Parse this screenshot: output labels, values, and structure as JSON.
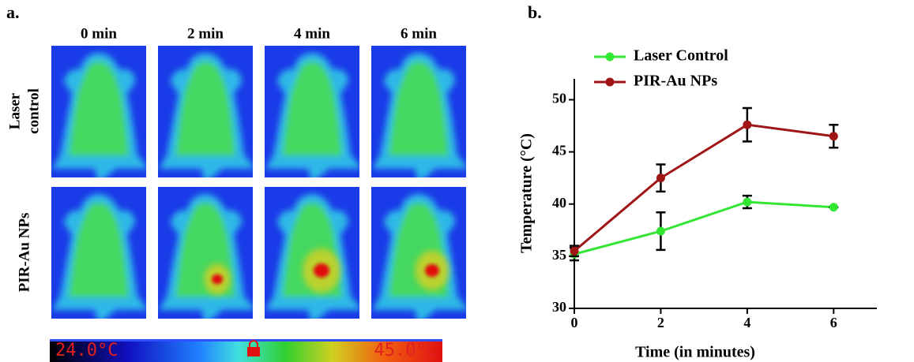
{
  "panel_a": {
    "label": "a.",
    "columns": [
      "0 min",
      "2 min",
      "4 min",
      "6 min"
    ],
    "rows": [
      [
        "Laser",
        "control"
      ],
      [
        "PIR-Au NPs"
      ]
    ],
    "colorbar": {
      "min_label": "24.0°C",
      "max_label": "45.0°C"
    }
  },
  "chart_data": {
    "type": "line",
    "title": "b.",
    "x_label": "Time (in minutes)",
    "y_label": "Temperature (°C)",
    "x": [
      0,
      2,
      4,
      6
    ],
    "series": [
      {
        "name": "Laser Control",
        "color": "#33e633",
        "values": [
          35.2,
          37.4,
          40.2,
          39.7
        ],
        "errors": [
          0.6,
          1.8,
          0.6,
          0
        ]
      },
      {
        "name": "PIR-Au NPs",
        "color": "#a01515",
        "values": [
          35.5,
          42.5,
          47.6,
          46.5
        ],
        "errors": [
          0.5,
          1.3,
          1.6,
          1.1
        ]
      }
    ],
    "xlim": [
      0,
      7
    ],
    "xticks": [
      0,
      2,
      4,
      6
    ],
    "ylim": [
      30,
      52
    ],
    "yticks": [
      30,
      35,
      40,
      45,
      50
    ],
    "legend": "upper left"
  }
}
